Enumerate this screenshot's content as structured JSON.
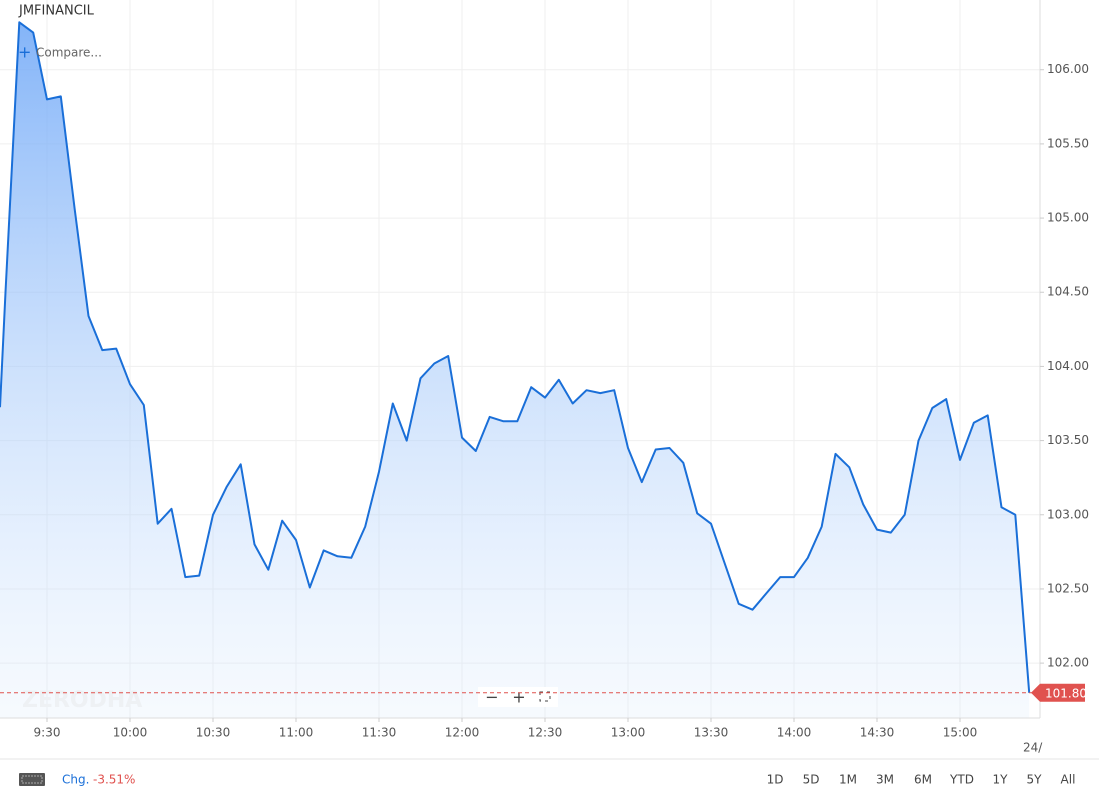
{
  "chart_data": {
    "type": "area",
    "title": "JMFINANCIL",
    "compare": "Compare...",
    "watermark": "ZERODHA",
    "color": "#1a6fd8",
    "x": [
      "9:15",
      "9:20",
      "9:25",
      "9:30",
      "9:35",
      "9:40",
      "9:45",
      "9:50",
      "9:55",
      "10:00",
      "10:05",
      "10:10",
      "10:15",
      "10:20",
      "10:25",
      "10:30",
      "10:35",
      "10:40",
      "10:45",
      "10:50",
      "10:55",
      "11:00",
      "11:05",
      "11:10",
      "11:15",
      "11:20",
      "11:25",
      "11:30",
      "11:35",
      "11:40",
      "11:45",
      "11:50",
      "11:55",
      "12:00",
      "12:05",
      "12:10",
      "12:15",
      "12:20",
      "12:25",
      "12:30",
      "12:35",
      "12:40",
      "12:45",
      "12:50",
      "12:55",
      "13:00",
      "13:05",
      "13:10",
      "13:15",
      "13:20",
      "13:25",
      "13:30",
      "13:35",
      "13:40",
      "13:45",
      "13:50",
      "13:55",
      "14:00",
      "14:05",
      "14:10",
      "14:15",
      "14:20",
      "14:25",
      "14:30",
      "14:35",
      "14:40",
      "14:45",
      "14:50",
      "14:55",
      "15:00",
      "15:05",
      "15:10",
      "15:15",
      "15:20",
      "15:25"
    ],
    "values": [
      104.5,
      106.32,
      106.25,
      105.8,
      105.82,
      105.06,
      104.34,
      104.11,
      104.12,
      103.88,
      103.74,
      102.94,
      103.04,
      102.58,
      102.59,
      103.0,
      103.19,
      103.34,
      102.8,
      102.63,
      102.96,
      102.83,
      102.51,
      102.76,
      102.72,
      102.71,
      102.92,
      103.29,
      103.75,
      103.5,
      103.92,
      104.02,
      104.07,
      103.52,
      103.43,
      103.66,
      103.63,
      103.63,
      103.86,
      103.79,
      103.91,
      103.75,
      103.84,
      103.82,
      103.84,
      103.45,
      103.22,
      103.44,
      103.45,
      103.35,
      103.01,
      102.94,
      102.67,
      102.4,
      102.36,
      102.47,
      102.58,
      102.58,
      102.71,
      102.92,
      103.41,
      103.32,
      103.07,
      102.9,
      102.88,
      103.0,
      103.5,
      103.72,
      103.78,
      103.37,
      103.62,
      103.67,
      103.05,
      103.0,
      101.8
    ],
    "xticks": [
      "9:30",
      "10:00",
      "10:30",
      "11:00",
      "11:30",
      "12:00",
      "12:30",
      "13:00",
      "13:30",
      "14:00",
      "14:30",
      "15:00"
    ],
    "date_marker": "24/",
    "ylim": [
      101.63,
      106.47
    ],
    "yticks": [
      {
        "value": 102,
        "label": "102.00"
      },
      {
        "value": 102.5,
        "label": "102.50"
      },
      {
        "value": 103,
        "label": "103.00"
      },
      {
        "value": 103.5,
        "label": "103.50"
      },
      {
        "value": 104,
        "label": "104.00"
      },
      {
        "value": 104.5,
        "label": "104.50"
      },
      {
        "value": 105,
        "label": "105.00"
      },
      {
        "value": 105.5,
        "label": "105.50"
      },
      {
        "value": 106,
        "label": "106.00"
      }
    ],
    "grid": true,
    "last_price": {
      "value": 101.8,
      "label": "101.80"
    }
  },
  "footer": {
    "change_label": "Chg.",
    "change": "-3.51%",
    "ranges": [
      "1D",
      "5D",
      "1M",
      "3M",
      "6M",
      "YTD",
      "1Y",
      "5Y",
      "All"
    ]
  }
}
